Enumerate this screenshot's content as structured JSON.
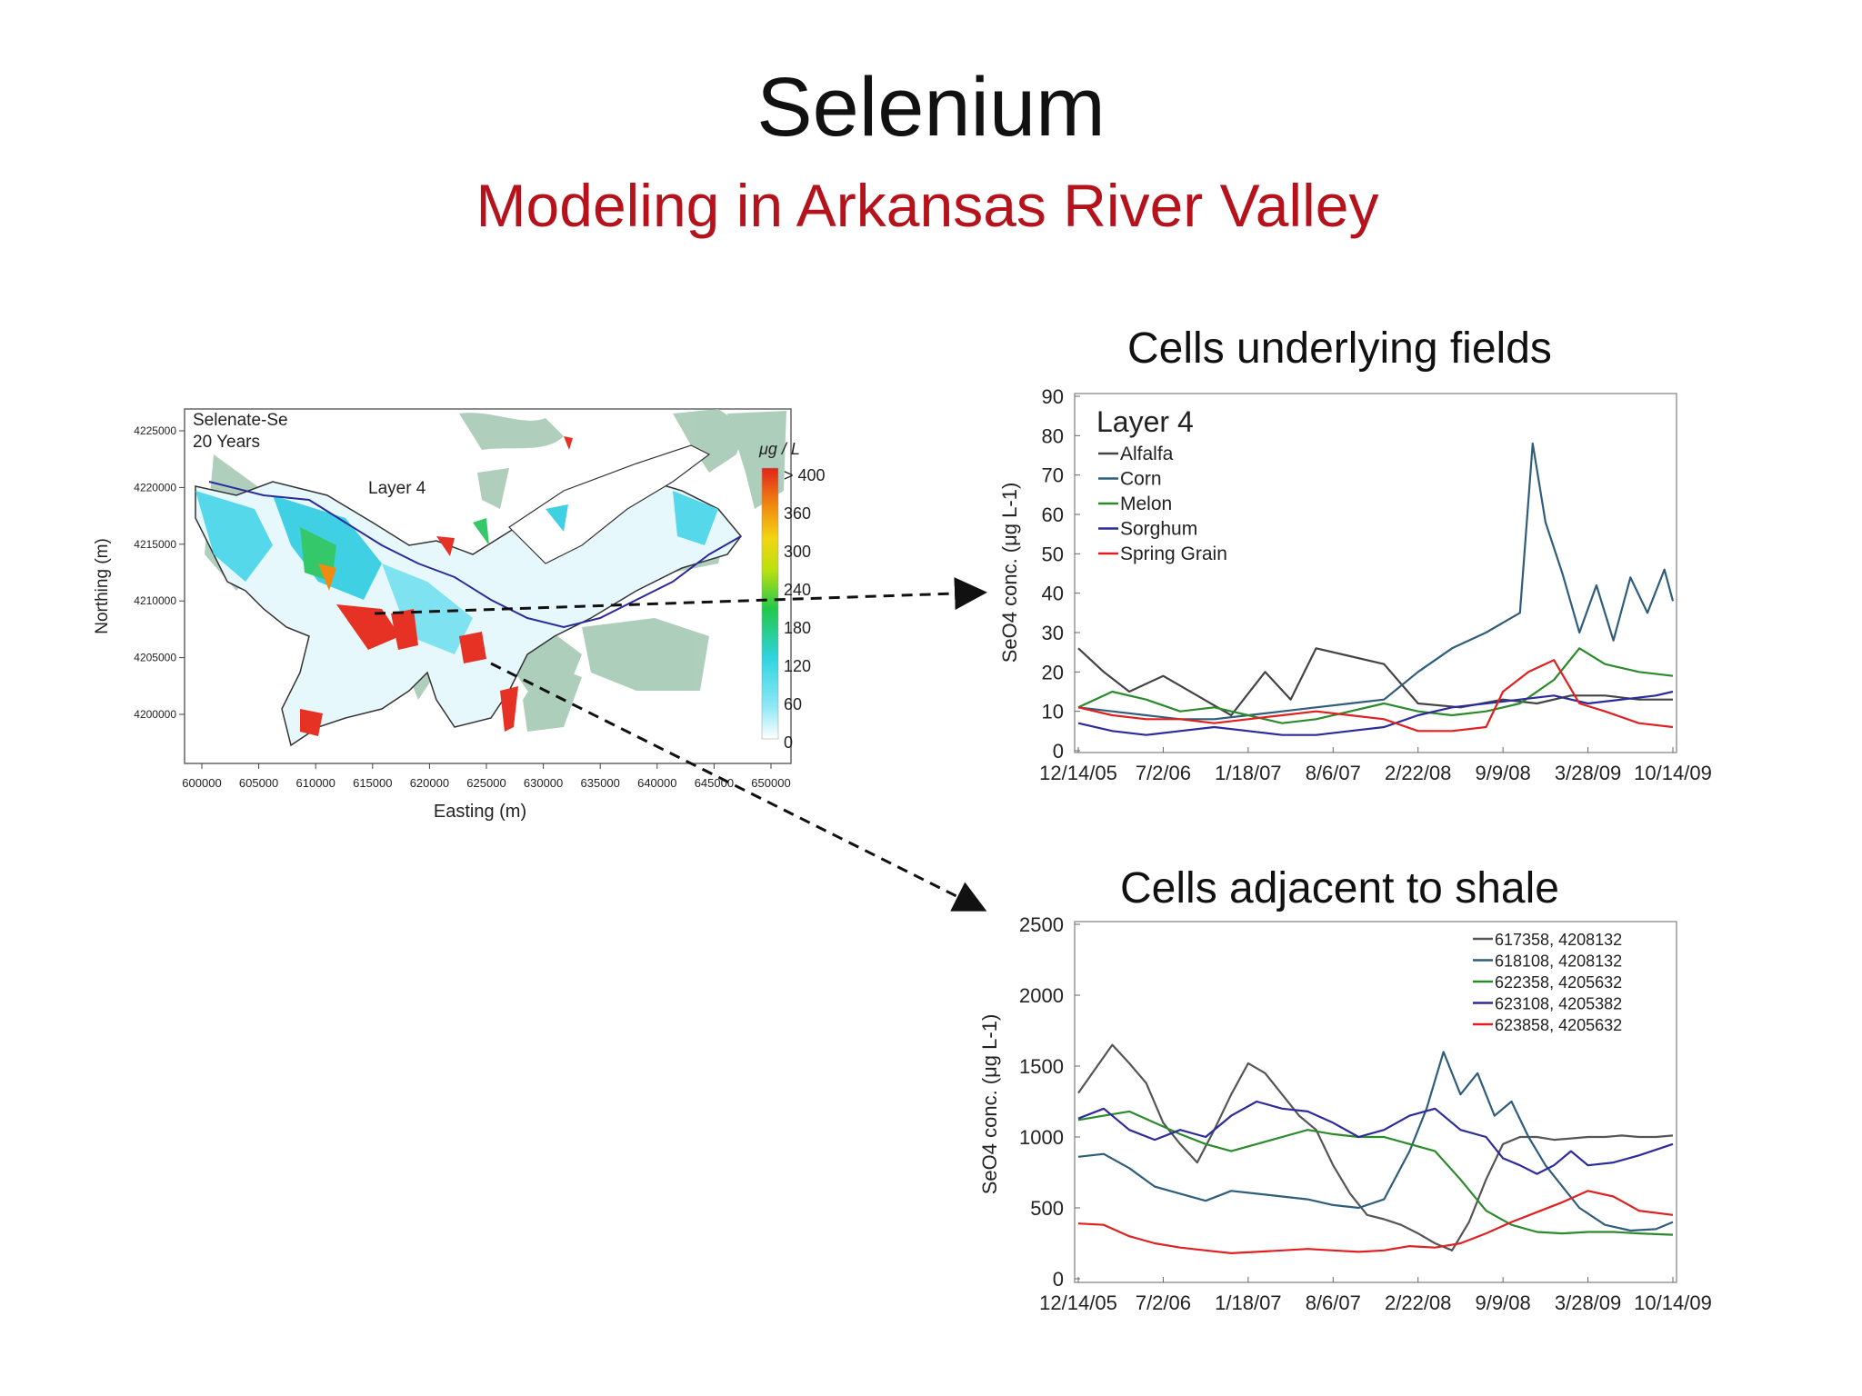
{
  "slide": {
    "title": "Selenium",
    "subtitle": "Modeling in Arkansas River Valley"
  },
  "map": {
    "label_line1": "Selenate-Se",
    "label_line2": "20 Years",
    "layer_label": "Layer 4",
    "xlabel": "Easting (m)",
    "ylabel": "Northing (m)",
    "x_ticks": [
      "600000",
      "605000",
      "610000",
      "615000",
      "620000",
      "625000",
      "630000",
      "635000",
      "640000",
      "645000",
      "650000"
    ],
    "y_ticks": [
      "4225000",
      "4220000",
      "4215000",
      "4210000",
      "4205000",
      "4200000"
    ],
    "colorbar_unit": "μg / L",
    "colorbar_ticks": [
      "> 400",
      "360",
      "300",
      "240",
      "180",
      "120",
      "60",
      "0"
    ],
    "colors": {
      "low": "#e8f8ff",
      "mid": "#34d9e6",
      "high": "#e8261a",
      "shale": "#a6c9b5"
    }
  },
  "chart_data": [
    {
      "type": "line",
      "panel_title": "Cells underlying fields",
      "title": "Layer 4",
      "ylabel": "SeO4 conc. (μg L-1)",
      "ylim": [
        0,
        90
      ],
      "y_ticks": [
        "0",
        "10",
        "20",
        "30",
        "40",
        "50",
        "60",
        "70",
        "80",
        "90"
      ],
      "x_ticks": [
        "12/14/05",
        "7/2/06",
        "1/18/07",
        "8/6/07",
        "2/22/08",
        "9/9/08",
        "3/28/09",
        "10/14/09"
      ],
      "legend_position": "top-left",
      "series": [
        {
          "name": "Alfalfa",
          "color": "#444444",
          "x": [
            0,
            0.3,
            0.6,
            1.0,
            1.4,
            1.8,
            2.2,
            2.5,
            2.8,
            3.2,
            3.6,
            4.0,
            4.5,
            5.0,
            5.4,
            5.8,
            6.2,
            6.6,
            7.0
          ],
          "values": [
            26,
            20,
            15,
            19,
            14,
            9,
            20,
            13,
            26,
            24,
            22,
            12,
            11,
            13,
            12,
            14,
            14,
            13,
            13
          ]
        },
        {
          "name": "Corn",
          "color": "#2f5d7a",
          "x": [
            0,
            0.4,
            0.8,
            1.2,
            1.6,
            2.0,
            2.4,
            2.8,
            3.2,
            3.6,
            4.0,
            4.4,
            4.8,
            5.2,
            5.35,
            5.5,
            5.7,
            5.9,
            6.1,
            6.3,
            6.5,
            6.7,
            6.9,
            7.0
          ],
          "values": [
            11,
            10,
            9,
            8,
            8,
            9,
            10,
            11,
            12,
            13,
            20,
            26,
            30,
            35,
            78,
            58,
            45,
            30,
            42,
            28,
            44,
            35,
            46,
            38
          ]
        },
        {
          "name": "Melon",
          "color": "#2b8a2b",
          "x": [
            0,
            0.4,
            0.8,
            1.2,
            1.6,
            2.0,
            2.4,
            2.8,
            3.2,
            3.6,
            4.0,
            4.4,
            4.8,
            5.2,
            5.6,
            5.9,
            6.2,
            6.6,
            7.0
          ],
          "values": [
            11,
            15,
            13,
            10,
            11,
            9,
            7,
            8,
            10,
            12,
            10,
            9,
            10,
            12,
            18,
            26,
            22,
            20,
            19
          ]
        },
        {
          "name": "Sorghum",
          "color": "#2b2b9a",
          "x": [
            0,
            0.4,
            0.8,
            1.2,
            1.6,
            2.0,
            2.4,
            2.8,
            3.2,
            3.6,
            4.0,
            4.4,
            4.8,
            5.2,
            5.6,
            6.0,
            6.4,
            6.8,
            7.0
          ],
          "values": [
            7,
            5,
            4,
            5,
            6,
            5,
            4,
            4,
            5,
            6,
            9,
            11,
            12,
            13,
            14,
            12,
            13,
            14,
            15
          ]
        },
        {
          "name": "Spring Grain",
          "color": "#e02020",
          "x": [
            0,
            0.4,
            0.8,
            1.2,
            1.6,
            2.0,
            2.4,
            2.8,
            3.2,
            3.6,
            4.0,
            4.4,
            4.8,
            5.0,
            5.3,
            5.6,
            5.9,
            6.2,
            6.6,
            7.0
          ],
          "values": [
            11,
            9,
            8,
            8,
            7,
            8,
            9,
            10,
            9,
            8,
            5,
            5,
            6,
            15,
            20,
            23,
            12,
            10,
            7,
            6
          ]
        }
      ]
    },
    {
      "type": "line",
      "panel_title": "Cells adjacent to shale",
      "ylabel": "SeO4 conc. (μg L-1)",
      "ylim": [
        0,
        2500
      ],
      "y_ticks": [
        "0",
        "500",
        "1000",
        "1500",
        "2000",
        "2500"
      ],
      "x_ticks": [
        "12/14/05",
        "7/2/06",
        "1/18/07",
        "8/6/07",
        "2/22/08",
        "9/9/08",
        "3/28/09",
        "10/14/09"
      ],
      "legend_position": "top-right",
      "series": [
        {
          "name": "617358, 4208132",
          "color": "#555555",
          "x": [
            0,
            0.2,
            0.4,
            0.6,
            0.8,
            1.0,
            1.2,
            1.4,
            1.6,
            1.8,
            2.0,
            2.2,
            2.4,
            2.6,
            2.8,
            3.0,
            3.2,
            3.4,
            3.6,
            3.8,
            4.0,
            4.2,
            4.4,
            4.6,
            4.8,
            5.0,
            5.2,
            5.4,
            5.6,
            5.8,
            6.0,
            6.2,
            6.4,
            6.6,
            6.8,
            7.0
          ],
          "values": [
            1310,
            1480,
            1650,
            1520,
            1380,
            1100,
            950,
            820,
            1050,
            1300,
            1520,
            1450,
            1300,
            1150,
            1050,
            800,
            600,
            450,
            420,
            380,
            320,
            250,
            200,
            400,
            700,
            950,
            1000,
            1000,
            980,
            990,
            1000,
            1000,
            1010,
            1000,
            1000,
            1010
          ]
        },
        {
          "name": "618108, 4208132",
          "color": "#2f5d7a",
          "x": [
            0,
            0.3,
            0.6,
            0.9,
            1.2,
            1.5,
            1.8,
            2.1,
            2.4,
            2.7,
            3.0,
            3.3,
            3.6,
            3.9,
            4.1,
            4.3,
            4.5,
            4.7,
            4.9,
            5.1,
            5.3,
            5.5,
            5.7,
            5.9,
            6.2,
            6.5,
            6.8,
            7.0
          ],
          "values": [
            860,
            880,
            780,
            650,
            600,
            550,
            620,
            600,
            580,
            560,
            520,
            500,
            560,
            900,
            1200,
            1600,
            1300,
            1450,
            1150,
            1250,
            1000,
            800,
            650,
            500,
            380,
            340,
            350,
            400
          ]
        },
        {
          "name": "622358, 4205632",
          "color": "#2b8a2b",
          "x": [
            0,
            0.3,
            0.6,
            0.9,
            1.2,
            1.5,
            1.8,
            2.1,
            2.4,
            2.7,
            3.0,
            3.3,
            3.6,
            3.9,
            4.2,
            4.5,
            4.8,
            5.1,
            5.4,
            5.7,
            6.0,
            6.3,
            6.6,
            7.0
          ],
          "values": [
            1120,
            1150,
            1180,
            1100,
            1020,
            950,
            900,
            950,
            1000,
            1050,
            1020,
            1000,
            1000,
            950,
            900,
            700,
            480,
            380,
            330,
            320,
            330,
            330,
            320,
            310
          ]
        },
        {
          "name": "623108, 4205382",
          "color": "#2b2b9a",
          "x": [
            0,
            0.3,
            0.6,
            0.9,
            1.2,
            1.5,
            1.8,
            2.1,
            2.4,
            2.7,
            3.0,
            3.3,
            3.6,
            3.9,
            4.2,
            4.5,
            4.8,
            5.0,
            5.2,
            5.4,
            5.6,
            5.8,
            6.0,
            6.3,
            6.6,
            7.0
          ],
          "values": [
            1130,
            1200,
            1050,
            980,
            1050,
            1000,
            1150,
            1250,
            1200,
            1180,
            1100,
            1000,
            1050,
            1150,
            1200,
            1050,
            1000,
            850,
            800,
            740,
            800,
            900,
            800,
            820,
            870,
            950
          ]
        },
        {
          "name": "623858, 4205632",
          "color": "#e02020",
          "x": [
            0,
            0.3,
            0.6,
            0.9,
            1.2,
            1.5,
            1.8,
            2.1,
            2.4,
            2.7,
            3.0,
            3.3,
            3.6,
            3.9,
            4.2,
            4.5,
            4.8,
            5.1,
            5.4,
            5.7,
            6.0,
            6.3,
            6.6,
            7.0
          ],
          "values": [
            390,
            380,
            300,
            250,
            220,
            200,
            180,
            190,
            200,
            210,
            200,
            190,
            200,
            230,
            220,
            250,
            320,
            400,
            470,
            540,
            620,
            580,
            480,
            450
          ]
        }
      ]
    }
  ]
}
